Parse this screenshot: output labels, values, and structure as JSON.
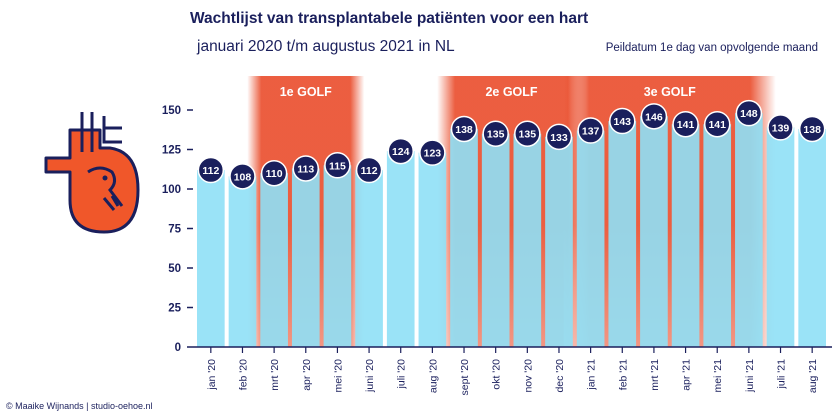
{
  "header": {
    "title": "Wachtlijst van transplantabele patiënten voor een hart",
    "subtitle": "januari 2020 t/m augustus 2021 in NL",
    "note": "Peildatum 1e dag van opvolgende maand"
  },
  "footer": {
    "credit": "© Maaike Wijnands | studio-oehoe.nl"
  },
  "logo": {
    "icon": "heart-icon"
  },
  "colors": {
    "bar": "#8fe0f6",
    "circle": "#1a1f5c",
    "wave": "#e8421f",
    "axis": "#1a1f5c"
  },
  "chart_data": {
    "type": "bar",
    "categories": [
      "jan '20",
      "feb '20",
      "mrt '20",
      "apr '20",
      "mei '20",
      "juni '20",
      "juli '20",
      "aug '20",
      "sept '20",
      "okt '20",
      "nov '20",
      "dec '20",
      "jan '21",
      "feb '21",
      "mrt '21",
      "apr '21",
      "mei '21",
      "juni '21",
      "juli '21",
      "aug '21"
    ],
    "values": [
      112,
      108,
      110,
      113,
      115,
      112,
      124,
      123,
      138,
      135,
      135,
      133,
      137,
      143,
      146,
      141,
      141,
      148,
      139,
      138
    ],
    "yticks": [
      0,
      25,
      50,
      75,
      100,
      125,
      150
    ],
    "ylim": [
      0,
      150
    ],
    "title": "Wachtlijst van transplantabele patiënten voor een hart",
    "xlabel": "",
    "ylabel": "",
    "grid": false,
    "data_labels": true,
    "waves": [
      {
        "label": "1e GOLF",
        "start": "mrt '20",
        "end": "mei '20"
      },
      {
        "label": "2e GOLF",
        "start": "sept '20",
        "end": "dec '20"
      },
      {
        "label": "3e GOLF",
        "start": "jan '21",
        "end": "juni '21"
      }
    ]
  }
}
